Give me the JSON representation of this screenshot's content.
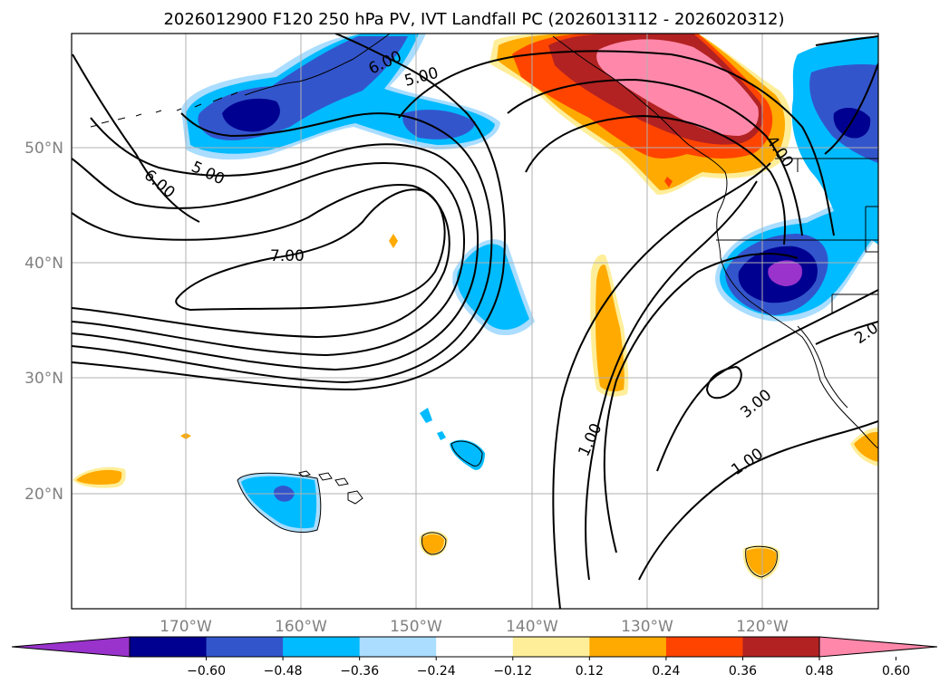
{
  "title": "2026012900 F120 250 hPa PV, IVT Landfall PC (2026013112 - 2026020312)",
  "lon_labels": [
    "170°W",
    "160°W",
    "150°W",
    "140°W",
    "130°W",
    "120°W"
  ],
  "lat_labels": [
    "50°N",
    "40°N",
    "30°N",
    "20°N"
  ],
  "colorbar": {
    "colors": [
      "#9933cc",
      "#000090",
      "#3355cc",
      "#00bbff",
      "#aaddff",
      "#ffffff",
      "#ffee99",
      "#ffaa00",
      "#ff4400",
      "#b22222",
      "#ff88aa"
    ],
    "tick_labels": [
      "−0.60",
      "−0.48",
      "−0.36",
      "−0.24",
      "−0.12",
      "0.12",
      "0.24",
      "0.36",
      "0.48",
      "0.60"
    ]
  },
  "contour_labels": [
    "6.00",
    "5.00",
    "6.00",
    "5.00",
    "7.00",
    "4.00",
    "1.00",
    "3.00",
    "1.00",
    "2.0"
  ]
}
